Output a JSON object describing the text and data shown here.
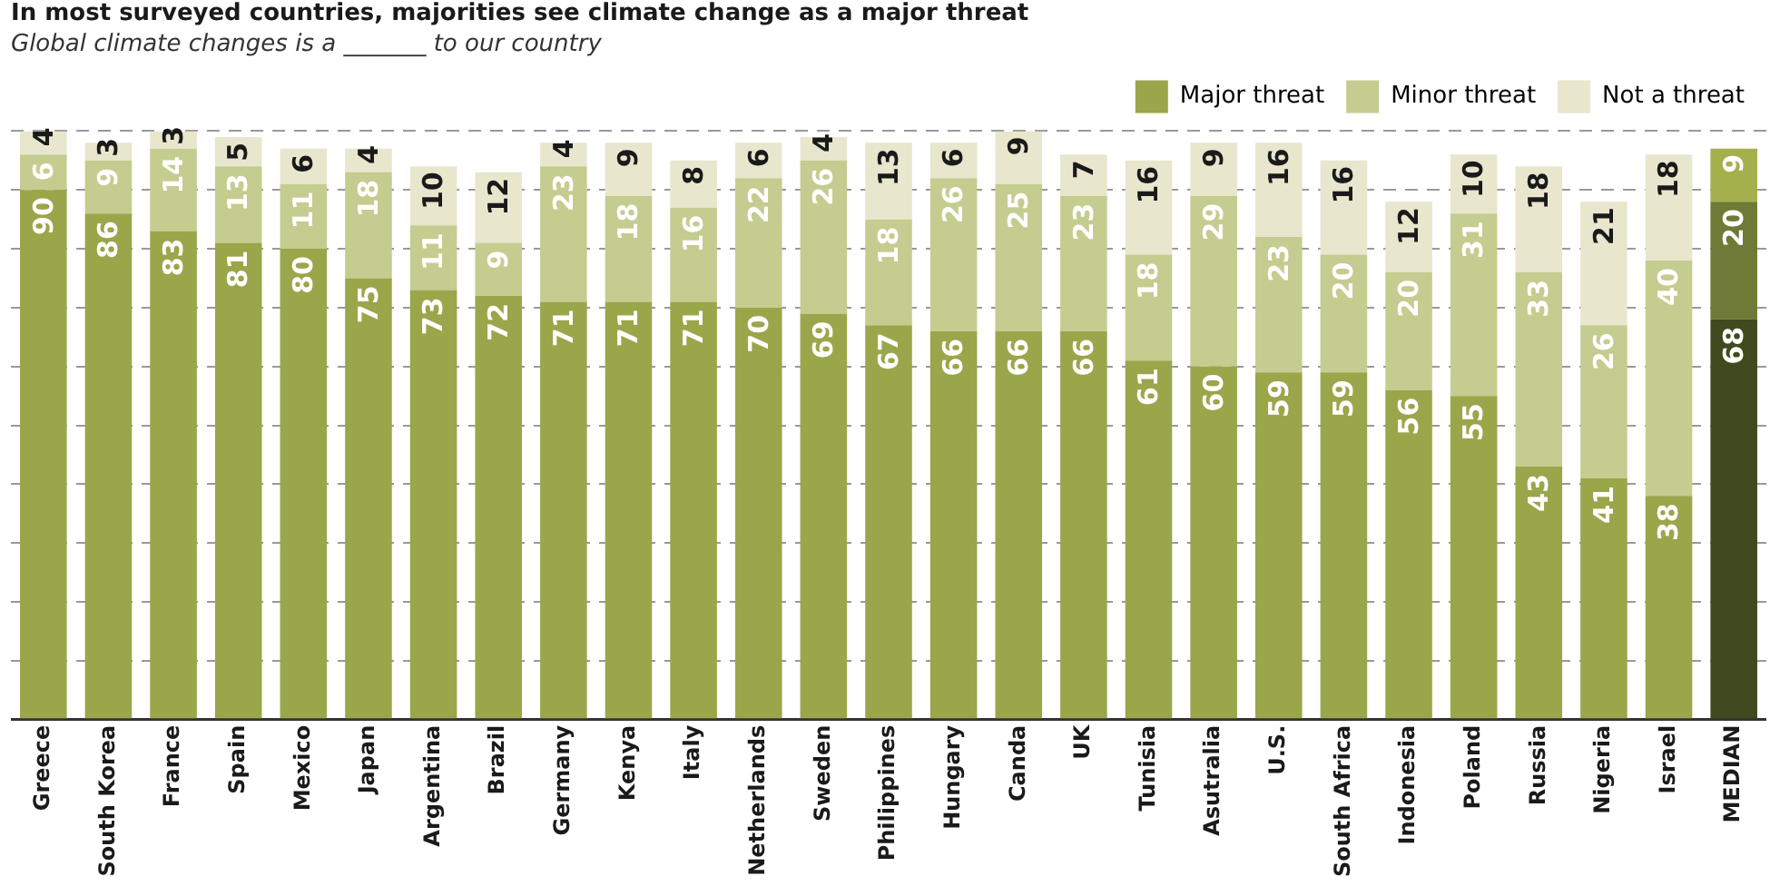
{
  "chart_data": {
    "type": "bar",
    "stacked": true,
    "title": "In most surveyed countries, majorities see climate change as a major threat",
    "subtitle": "Global climate changes is a _______ to our country",
    "categories": [
      "Greece",
      "South Korea",
      "France",
      "Spain",
      "Mexico",
      "Japan",
      "Argentina",
      "Brazil",
      "Germany",
      "Kenya",
      "Italy",
      "Netherlands",
      "Sweden",
      "Philippines",
      "Hungary",
      "Canda",
      "UK",
      "Tunisia",
      "Asutralia",
      "U.S.",
      "South Africa",
      "Indonesia",
      "Poland",
      "Russia",
      "Nigeria",
      "Israel",
      "MEDIAN"
    ],
    "series": [
      {
        "name": "Major threat",
        "color": "#9aa64a",
        "colors": [
          "#9aa64a",
          "#9aa64a",
          "#9aa64a",
          "#9aa64a",
          "#9aa64a",
          "#9aa64a",
          "#9aa64a",
          "#9aa64a",
          "#9aa64a",
          "#9aa64a",
          "#9aa64a",
          "#9aa64a",
          "#9aa64a",
          "#9aa64a",
          "#9aa64a",
          "#9aa64a",
          "#9aa64a",
          "#9aa64a",
          "#9aa64a",
          "#9aa64a",
          "#9aa64a",
          "#9aa64a",
          "#9aa64a",
          "#9aa64a",
          "#9aa64a",
          "#9aa64a",
          "#3f4a1e"
        ],
        "values": [
          90,
          86,
          83,
          81,
          80,
          75,
          73,
          72,
          71,
          71,
          71,
          70,
          69,
          67,
          66,
          66,
          66,
          61,
          60,
          59,
          59,
          56,
          55,
          43,
          41,
          38,
          68
        ]
      },
      {
        "name": "Minor threat",
        "color": "#c5cc8f",
        "colors": [
          "#c5cc8f",
          "#c5cc8f",
          "#c5cc8f",
          "#c5cc8f",
          "#c5cc8f",
          "#c5cc8f",
          "#c5cc8f",
          "#c5cc8f",
          "#c5cc8f",
          "#c5cc8f",
          "#c5cc8f",
          "#c5cc8f",
          "#c5cc8f",
          "#c5cc8f",
          "#c5cc8f",
          "#c5cc8f",
          "#c5cc8f",
          "#c5cc8f",
          "#c5cc8f",
          "#c5cc8f",
          "#c5cc8f",
          "#c5cc8f",
          "#c5cc8f",
          "#c5cc8f",
          "#c5cc8f",
          "#c5cc8f",
          "#6e7a36"
        ],
        "values": [
          6,
          9,
          14,
          13,
          11,
          18,
          11,
          9,
          23,
          18,
          16,
          22,
          26,
          18,
          26,
          25,
          23,
          18,
          29,
          23,
          20,
          20,
          31,
          33,
          26,
          40,
          20
        ]
      },
      {
        "name": "Not a threat",
        "color": "#e8e6cd",
        "colors": [
          "#e8e6cd",
          "#e8e6cd",
          "#e8e6cd",
          "#e8e6cd",
          "#e8e6cd",
          "#e8e6cd",
          "#e8e6cd",
          "#e8e6cd",
          "#e8e6cd",
          "#e8e6cd",
          "#e8e6cd",
          "#e8e6cd",
          "#e8e6cd",
          "#e8e6cd",
          "#e8e6cd",
          "#e8e6cd",
          "#e8e6cd",
          "#e8e6cd",
          "#e8e6cd",
          "#e8e6cd",
          "#e8e6cd",
          "#e8e6cd",
          "#e8e6cd",
          "#e8e6cd",
          "#e8e6cd",
          "#e8e6cd",
          "#a4b04c"
        ],
        "values": [
          4,
          3,
          3,
          5,
          6,
          4,
          10,
          12,
          4,
          9,
          8,
          6,
          4,
          13,
          6,
          9,
          7,
          16,
          9,
          16,
          16,
          12,
          10,
          18,
          21,
          18,
          9
        ]
      }
    ],
    "ylim": [
      0,
      100
    ],
    "yticks": [
      {
        "value": 0,
        "label": null
      },
      {
        "value": 10,
        "label": null
      },
      {
        "value": 20,
        "label": null
      },
      {
        "value": 30,
        "label": null
      },
      {
        "value": 40,
        "label": null
      },
      {
        "value": 50,
        "label": null
      },
      {
        "value": 60,
        "label": null
      },
      {
        "value": 70,
        "label": null
      },
      {
        "value": 80,
        "label": null
      },
      {
        "value": 90,
        "label": null
      },
      {
        "value": 100,
        "label": null
      }
    ],
    "tick_labels": "x",
    "grid": "y",
    "legend": "top right",
    "data_labels": true
  }
}
